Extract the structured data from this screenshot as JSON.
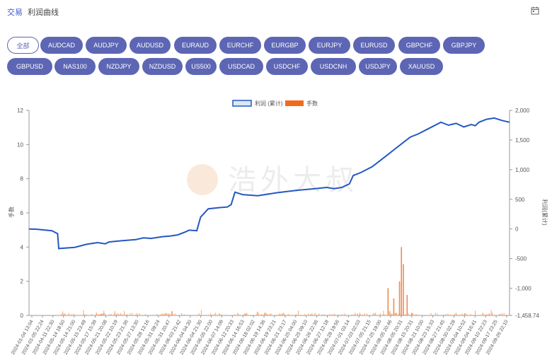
{
  "header": {
    "crumb_1": "交易",
    "crumb_2": "利润曲线"
  },
  "icons": {
    "calendar": "calendar-icon"
  },
  "filters": {
    "active": "全部",
    "row1": [
      "全部",
      "AUDCAD",
      "AUDJPY",
      "AUDUSD",
      "EURAUD",
      "EURCHF",
      "EURGBP",
      "EURJPY",
      "EURUSD",
      "GBPCHF",
      "GBPJPY"
    ],
    "row2": [
      "GBPUSD",
      "NAS100",
      "NZDJPY",
      "NZDUSD",
      "US500",
      "USDCAD",
      "USDCHF",
      "USDCNH",
      "USDJPY",
      "XAUUSD"
    ]
  },
  "watermark": "浩外大叔",
  "chart_data": {
    "type": "line",
    "legend": [
      "利润 (累计)",
      "手数"
    ],
    "legend_position": "top-center",
    "ylabel_left": "手数",
    "ylabel_right": "利润(累计)",
    "y_left_ticks": [
      0,
      2,
      4,
      6,
      8,
      10,
      12
    ],
    "y_left_range": [
      0,
      12
    ],
    "y_right_ticks": [
      "-1,458.74",
      "-1,000",
      "-500",
      "0",
      "500",
      "1,000",
      "1,500",
      "2,000"
    ],
    "y_right_range": [
      -1458.74,
      2000
    ],
    "grid": false,
    "x_labels": [
      "2024-01-04 13:04",
      "2024-01-05 22:24",
      "2024-04-11 22:30",
      "2024-05-14 18:50",
      "2024-05-14 21:00",
      "2024-05-15 23:49",
      "2024-05-17 15:39",
      "2024-05-21 20:08",
      "2024-05-22 10:19",
      "2024-05-23 21:36",
      "2024-05-27 13:30",
      "2024-05-28 13:16",
      "2024-05-31 09:24",
      "2024-05-31 20:47",
      "2024-06-03 21:42",
      "2024-06-04 04:30",
      "2024-06-04 21:30",
      "2024-06-05 22:00",
      "2024-06-07 14:09",
      "2024-06-12 20:33",
      "2024-06-14 16:53",
      "2024-06-18 02:02",
      "2024-06-19 14:36",
      "2024-06-19 23:21",
      "2024-06-21 23:17",
      "2024-06-25 04:00",
      "2024-06-25 09:10",
      "2024-06-26 22:36",
      "2024-06-27 12:18",
      "2024-06-28 19:56",
      "2024-07-01 03:14",
      "2024-07-03 02:03",
      "2024-07-05 21:15",
      "2024-07-25 19:00",
      "2024-08-05 20:46",
      "2024-08-05 20:31",
      "2024-08-15 20:31",
      "2024-08-21 10:00",
      "2024-08-23 15:33",
      "2024-08-27 21:45",
      "2024-08-30 02:28",
      "2024-09-04 10:52",
      "2024-09-04 16:41",
      "2024-09-10 22:23",
      "2024-09-17 23:25",
      "2024-09-26 22:10"
    ],
    "profit_series": [
      [
        0,
        0
      ],
      [
        0.02,
        -5
      ],
      [
        0.06,
        -30
      ],
      [
        0.075,
        -80
      ],
      [
        0.078,
        -330
      ],
      [
        0.12,
        -310
      ],
      [
        0.15,
        -260
      ],
      [
        0.18,
        -230
      ],
      [
        0.2,
        -250
      ],
      [
        0.21,
        -220
      ],
      [
        0.24,
        -200
      ],
      [
        0.28,
        -180
      ],
      [
        0.3,
        -150
      ],
      [
        0.32,
        -160
      ],
      [
        0.35,
        -130
      ],
      [
        0.37,
        -120
      ],
      [
        0.39,
        -100
      ],
      [
        0.41,
        -50
      ],
      [
        0.42,
        -20
      ],
      [
        0.44,
        -30
      ],
      [
        0.45,
        200
      ],
      [
        0.47,
        340
      ],
      [
        0.5,
        360
      ],
      [
        0.52,
        370
      ],
      [
        0.53,
        410
      ],
      [
        0.54,
        620
      ],
      [
        0.56,
        580
      ],
      [
        0.6,
        560
      ],
      [
        0.65,
        610
      ],
      [
        0.7,
        650
      ],
      [
        0.75,
        680
      ],
      [
        0.78,
        700
      ],
      [
        0.8,
        680
      ],
      [
        0.82,
        700
      ],
      [
        0.84,
        760
      ],
      [
        0.85,
        900
      ],
      [
        0.87,
        950
      ],
      [
        0.9,
        1050
      ],
      [
        0.92,
        1150
      ],
      [
        0.94,
        1250
      ],
      [
        0.96,
        1350
      ],
      [
        0.98,
        1450
      ],
      [
        1.0,
        1550
      ],
      [
        1.02,
        1600
      ],
      [
        1.05,
        1700
      ],
      [
        1.08,
        1800
      ],
      [
        1.1,
        1750
      ],
      [
        1.12,
        1780
      ],
      [
        1.14,
        1720
      ],
      [
        1.16,
        1760
      ],
      [
        1.17,
        1740
      ],
      [
        1.18,
        1800
      ],
      [
        1.2,
        1850
      ],
      [
        1.22,
        1870
      ],
      [
        1.24,
        1830
      ],
      [
        1.26,
        1800
      ]
    ],
    "lots_spikes": [
      [
        0.94,
        1.6
      ],
      [
        0.955,
        1.0
      ],
      [
        0.97,
        2.0
      ],
      [
        0.975,
        4.0
      ],
      [
        0.98,
        3.0
      ],
      [
        0.99,
        1.2
      ]
    ]
  }
}
